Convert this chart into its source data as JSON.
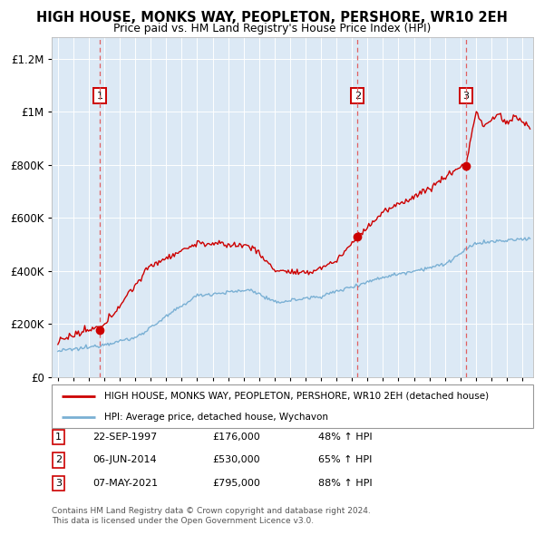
{
  "title": "HIGH HOUSE, MONKS WAY, PEOPLETON, PERSHORE, WR10 2EH",
  "subtitle": "Price paid vs. HM Land Registry's House Price Index (HPI)",
  "legend_line1": "HIGH HOUSE, MONKS WAY, PEOPLETON, PERSHORE, WR10 2EH (detached house)",
  "legend_line2": "HPI: Average price, detached house, Wychavon",
  "sales": [
    {
      "num": 1,
      "date": "22-SEP-1997",
      "year": 1997.72,
      "price": 176000,
      "pct": "48% ↑ HPI"
    },
    {
      "num": 2,
      "date": "06-JUN-2014",
      "year": 2014.35,
      "price": 530000,
      "pct": "65% ↑ HPI"
    },
    {
      "num": 3,
      "date": "07-MAY-2021",
      "year": 2021.35,
      "price": 795000,
      "pct": "88% ↑ HPI"
    }
  ],
  "footer_line1": "Contains HM Land Registry data © Crown copyright and database right 2024.",
  "footer_line2": "This data is licensed under the Open Government Licence v3.0.",
  "ylim_max": 1280000,
  "xlim_start": 1994.6,
  "xlim_end": 2025.7,
  "red_color": "#cc0000",
  "blue_color": "#7ab0d4",
  "bg_color": "#dce9f5",
  "grid_color": "#ffffff",
  "dashed_color": "#e06060"
}
